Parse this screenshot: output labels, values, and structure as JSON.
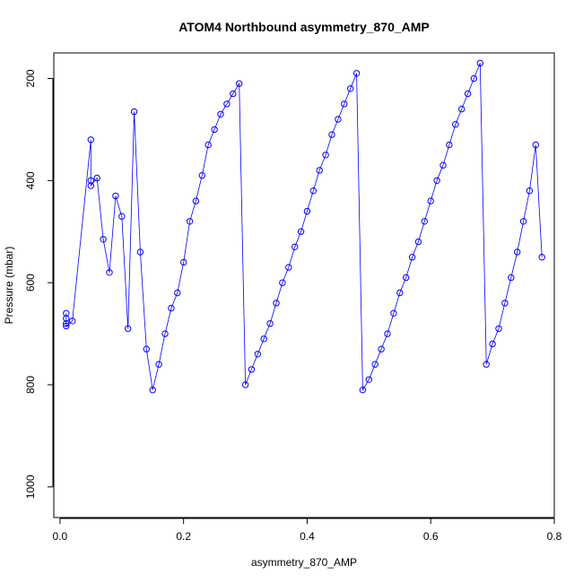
{
  "chart_data": {
    "type": "scatter",
    "title": "ATOM4 Northbound asymmetry_870_AMP",
    "xlabel": "asymmetry_870_AMP",
    "ylabel": "Pressure (mbar)",
    "xlim": [
      -0.01,
      0.8
    ],
    "ylim": [
      1060,
      150
    ],
    "y_reversed": true,
    "xticks": [
      0.0,
      0.2,
      0.4,
      0.6,
      0.8
    ],
    "xtick_labels": [
      "0.0",
      "0.2",
      "0.4",
      "0.6",
      "0.8"
    ],
    "yticks": [
      200,
      400,
      600,
      800,
      1000
    ],
    "ytick_labels": [
      "200",
      "400",
      "600",
      "800",
      "1000"
    ],
    "grid": false,
    "legend": "none",
    "marker": "open-circle",
    "connect_points": true,
    "series": [
      {
        "color": "#0000ff",
        "x": [
          0.01,
          0.01,
          0.01,
          0.01,
          0.02,
          0.05,
          0.05,
          0.05,
          0.06,
          0.07,
          0.08,
          0.09,
          0.1,
          0.11,
          0.12,
          0.13,
          0.14,
          0.15,
          0.16,
          0.17,
          0.18,
          0.19,
          0.2,
          0.21,
          0.22,
          0.23,
          0.24,
          0.25,
          0.26,
          0.27,
          0.28,
          0.29,
          0.3,
          0.31,
          0.32,
          0.33,
          0.34,
          0.35,
          0.36,
          0.37,
          0.38,
          0.39,
          0.4,
          0.41,
          0.42,
          0.43,
          0.44,
          0.45,
          0.46,
          0.47,
          0.48,
          0.49,
          0.5,
          0.51,
          0.52,
          0.53,
          0.54,
          0.55,
          0.56,
          0.57,
          0.58,
          0.59,
          0.6,
          0.61,
          0.62,
          0.63,
          0.64,
          0.65,
          0.66,
          0.67,
          0.68,
          0.69,
          0.7,
          0.71,
          0.72,
          0.73,
          0.74,
          0.75,
          0.76,
          0.77,
          0.78
        ],
        "y": [
          660,
          670,
          680,
          685,
          675,
          320,
          400,
          410,
          395,
          515,
          580,
          430,
          470,
          690,
          265,
          540,
          730,
          810,
          760,
          700,
          650,
          620,
          560,
          480,
          440,
          390,
          330,
          300,
          270,
          250,
          230,
          210,
          800,
          770,
          740,
          710,
          680,
          640,
          600,
          570,
          530,
          500,
          460,
          420,
          380,
          350,
          310,
          280,
          250,
          220,
          190,
          810,
          790,
          760,
          730,
          700,
          660,
          620,
          590,
          550,
          520,
          480,
          440,
          400,
          370,
          330,
          290,
          260,
          230,
          200,
          170,
          760,
          720,
          690,
          640,
          590,
          540,
          480,
          420,
          330,
          550
        ]
      }
    ]
  }
}
